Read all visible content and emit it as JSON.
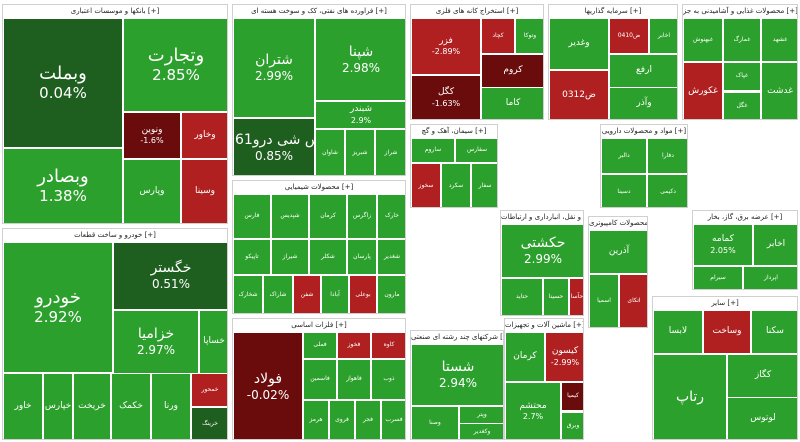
{
  "colors": {
    "strong_up": "#1e5e1e",
    "up": "#2ca02c",
    "light_up": "#41b341",
    "down": "#b02020",
    "strong_down": "#6a0c0c"
  },
  "sectors": [
    {
      "id": "banks",
      "title": "بانکها و موسسات اعتباری [+]",
      "tiles": [
        {
          "symbol": "وبملت",
          "change": "0.04%",
          "tone": "strong_up"
        },
        {
          "symbol": "وبصادر",
          "change": "1.38%",
          "tone": "up"
        },
        {
          "symbol": "وتجارت",
          "change": "2.85%",
          "tone": "up"
        },
        {
          "symbol": "ونوین",
          "change": "-1.6%",
          "tone": "strong_down"
        },
        {
          "symbol": "وخاور",
          "change": "",
          "tone": "down"
        },
        {
          "symbol": "وپارس",
          "change": "",
          "tone": "up"
        },
        {
          "symbol": "وسینا",
          "change": "",
          "tone": "down"
        }
      ]
    },
    {
      "id": "auto",
      "title": "خودرو و ساخت قطعات [+]",
      "tiles": [
        {
          "symbol": "خودرو",
          "change": "2.92%",
          "tone": "up"
        },
        {
          "symbol": "خگستر",
          "change": "0.51%",
          "tone": "strong_up"
        },
        {
          "symbol": "خزامیا",
          "change": "2.97%",
          "tone": "up"
        },
        {
          "symbol": "خساپا",
          "change": "",
          "tone": "up"
        },
        {
          "symbol": "خاور",
          "change": "",
          "tone": "up"
        },
        {
          "symbol": "خپارس",
          "change": "",
          "tone": "up"
        },
        {
          "symbol": "خریخت",
          "change": "",
          "tone": "up"
        },
        {
          "symbol": "خکمک",
          "change": "",
          "tone": "up"
        },
        {
          "symbol": "ورنا",
          "change": "",
          "tone": "up"
        },
        {
          "symbol": "خمحور",
          "change": "",
          "tone": "down"
        },
        {
          "symbol": "خرینگ",
          "change": "",
          "tone": "strong_up"
        }
      ]
    },
    {
      "id": "refinery",
      "title": "فراورده های نفتی، کک و سوخت هسته ای [+]",
      "tiles": [
        {
          "symbol": "شپنا",
          "change": "2.98%",
          "tone": "up"
        },
        {
          "symbol": "شبندر",
          "change": "2.9%",
          "tone": "up"
        },
        {
          "symbol": "شتران",
          "change": "2.99%",
          "tone": "up"
        },
        {
          "symbol": "س شی درو061",
          "change": "0.85%",
          "tone": "strong_up"
        },
        {
          "symbol": "شاوان",
          "change": "",
          "tone": "up"
        },
        {
          "symbol": "شبریز",
          "change": "",
          "tone": "up"
        },
        {
          "symbol": "شراز",
          "change": "",
          "tone": "up"
        }
      ]
    },
    {
      "id": "chemical",
      "title": "محصولات شیمیایی [+]",
      "tiles": [
        {
          "symbol": "فارس",
          "change": "",
          "tone": "up"
        },
        {
          "symbol": "شپدیس",
          "change": "",
          "tone": "up"
        },
        {
          "symbol": "کرمان",
          "change": "",
          "tone": "up"
        },
        {
          "symbol": "زاگرس",
          "change": "",
          "tone": "up"
        },
        {
          "symbol": "خارک",
          "change": "",
          "tone": "up"
        },
        {
          "symbol": "تاپیکو",
          "change": "",
          "tone": "up"
        },
        {
          "symbol": "شیراز",
          "change": "",
          "tone": "up"
        },
        {
          "symbol": "شکلر",
          "change": "",
          "tone": "up"
        },
        {
          "symbol": "پارسان",
          "change": "",
          "tone": "up"
        },
        {
          "symbol": "شغدیر",
          "change": "",
          "tone": "up"
        },
        {
          "symbol": "شخارک",
          "change": "",
          "tone": "up"
        },
        {
          "symbol": "شاراک",
          "change": "",
          "tone": "up"
        },
        {
          "symbol": "شفن",
          "change": "",
          "tone": "down"
        },
        {
          "symbol": "آبادا",
          "change": "",
          "tone": "up"
        },
        {
          "symbol": "بوعلی",
          "change": "",
          "tone": "down"
        },
        {
          "symbol": "مارون",
          "change": "",
          "tone": "up"
        }
      ]
    },
    {
      "id": "metals",
      "title": "فلزات اساسی [+]",
      "tiles": [
        {
          "symbol": "فولاد",
          "change": "-0.02%",
          "tone": "strong_down"
        },
        {
          "symbol": "فملی",
          "change": "",
          "tone": "up"
        },
        {
          "symbol": "فخوز",
          "change": "",
          "tone": "down"
        },
        {
          "symbol": "کاوه",
          "change": "",
          "tone": "down"
        },
        {
          "symbol": "فاسمین",
          "change": "",
          "tone": "up"
        },
        {
          "symbol": "فاهواز",
          "change": "",
          "tone": "up"
        },
        {
          "symbol": "ذوب",
          "change": "",
          "tone": "up"
        },
        {
          "symbol": "هرمز",
          "change": "",
          "tone": "up"
        },
        {
          "symbol": "فروی",
          "change": "",
          "tone": "up"
        },
        {
          "symbol": "فجر",
          "change": "",
          "tone": "up"
        },
        {
          "symbol": "فسرب",
          "change": "",
          "tone": "up"
        }
      ]
    },
    {
      "id": "investment",
      "title": "استخراج کانه های فلزی [+]",
      "tiles": [
        {
          "symbol": "فزر",
          "change": "-2.89%",
          "tone": "down"
        },
        {
          "symbol": "کگل",
          "change": "-1.63%",
          "tone": "strong_down"
        },
        {
          "symbol": "کچاد",
          "change": "",
          "tone": "down"
        },
        {
          "symbol": "وتوکا",
          "change": "",
          "tone": "up"
        },
        {
          "symbol": "کروم",
          "change": "",
          "tone": "strong_down"
        },
        {
          "symbol": "کاما",
          "change": "",
          "tone": "up"
        }
      ]
    },
    {
      "id": "holding",
      "title": "سرمایه گذاریها [+]",
      "tiles": [
        {
          "symbol": "وغدیر",
          "change": "",
          "tone": "up"
        },
        {
          "symbol": "0312ض",
          "change": "",
          "tone": "down"
        },
        {
          "symbol": "0410ض",
          "change": "",
          "tone": "down"
        },
        {
          "symbol": "اخابر",
          "change": "",
          "tone": "up"
        },
        {
          "symbol": "ارفع",
          "change": "",
          "tone": "up"
        },
        {
          "symbol": "وآذر",
          "change": "",
          "tone": "up"
        }
      ]
    },
    {
      "id": "food",
      "title": "محصولات غذایی و آشامیدنی به جز [+]",
      "tiles": [
        {
          "symbol": "غبهنوش",
          "change": "",
          "tone": "up"
        },
        {
          "symbol": "غمارگ",
          "change": "",
          "tone": "up"
        },
        {
          "symbol": "غشهد",
          "change": "",
          "tone": "up"
        },
        {
          "symbol": "غکورش",
          "change": "",
          "tone": "down"
        },
        {
          "symbol": "غپاک",
          "change": "",
          "tone": "up"
        },
        {
          "symbol": "غگل",
          "change": "",
          "tone": "up"
        },
        {
          "symbol": "غدشت",
          "change": "",
          "tone": "up"
        }
      ]
    },
    {
      "id": "transport",
      "title": "حمل و نقل، انبارداری و ارتباطات [+]",
      "tiles": [
        {
          "symbol": "حکشتی",
          "change": "2.99%",
          "tone": "up"
        },
        {
          "symbol": "حتاید",
          "change": "",
          "tone": "up"
        },
        {
          "symbol": "حسینا",
          "change": "",
          "tone": "up"
        },
        {
          "symbol": "حآسا",
          "change": "",
          "tone": "down"
        }
      ]
    },
    {
      "id": "cement",
      "title": "سیمان، آهک و گچ [+]",
      "tiles": [
        {
          "symbol": "ساروم",
          "change": "",
          "tone": "up"
        },
        {
          "symbol": "سفارس",
          "change": "",
          "tone": "up"
        },
        {
          "symbol": "سخوز",
          "change": "",
          "tone": "down"
        },
        {
          "symbol": "سکرد",
          "change": "",
          "tone": "up"
        },
        {
          "symbol": "سفار",
          "change": "",
          "tone": "up"
        }
      ]
    },
    {
      "id": "pharma",
      "title": "مواد و محصولات دارویی [+]",
      "tiles": [
        {
          "symbol": "دالبر",
          "change": "",
          "tone": "up"
        },
        {
          "symbol": "دفارا",
          "change": "",
          "tone": "up"
        },
        {
          "symbol": "دسینا",
          "change": "",
          "tone": "up"
        },
        {
          "symbol": "دکیمی",
          "change": "",
          "tone": "up"
        }
      ]
    },
    {
      "id": "multi",
      "title": "شرکتهای چند رشته ای صنعتی [+]",
      "tiles": [
        {
          "symbol": "شستا",
          "change": "2.94%",
          "tone": "up"
        },
        {
          "symbol": "وصنا",
          "change": "",
          "tone": "up"
        },
        {
          "symbol": "وپتر",
          "change": "",
          "tone": "up"
        },
        {
          "symbol": "وکغدیر",
          "change": "",
          "tone": "up"
        }
      ]
    },
    {
      "id": "machinery",
      "title": "ماشین آلات و تجهیزات [+]",
      "tiles": [
        {
          "symbol": "کرمان",
          "change": "",
          "tone": "up"
        },
        {
          "symbol": "کیسون",
          "change": "-2.99%",
          "tone": "down"
        },
        {
          "symbol": "محتشم",
          "change": "2.7%",
          "tone": "up"
        },
        {
          "symbol": "کیمیا",
          "change": "",
          "tone": "strong_down"
        },
        {
          "symbol": "وبرق",
          "change": "",
          "tone": "up"
        }
      ]
    },
    {
      "id": "tech",
      "title": "محصولات کامپیوتری [+]",
      "tiles": [
        {
          "symbol": "آذرین",
          "change": "",
          "tone": "up"
        },
        {
          "symbol": "اسمیا",
          "change": "",
          "tone": "up"
        },
        {
          "symbol": "اتکای",
          "change": "",
          "tone": "down"
        }
      ]
    },
    {
      "id": "utilities",
      "title": "عرضه برق، گاز، بخار [+]",
      "tiles": [
        {
          "symbol": "کمامه",
          "change": "2.05%",
          "tone": "up"
        },
        {
          "symbol": "اخابر",
          "change": "",
          "tone": "up"
        },
        {
          "symbol": "سیرام",
          "change": "",
          "tone": "up"
        },
        {
          "symbol": "اپرداز",
          "change": "",
          "tone": "up"
        }
      ]
    },
    {
      "id": "misc",
      "title": "سایر [+]",
      "tiles": [
        {
          "symbol": "لابسا",
          "change": "",
          "tone": "up"
        },
        {
          "symbol": "وساخت",
          "change": "",
          "tone": "down"
        },
        {
          "symbol": "سکنا",
          "change": "",
          "tone": "up"
        },
        {
          "symbol": "رتاپ",
          "change": "",
          "tone": "up"
        },
        {
          "symbol": "کگاز",
          "change": "",
          "tone": "up"
        },
        {
          "symbol": "لوتوس",
          "change": "",
          "tone": "up"
        }
      ]
    }
  ]
}
